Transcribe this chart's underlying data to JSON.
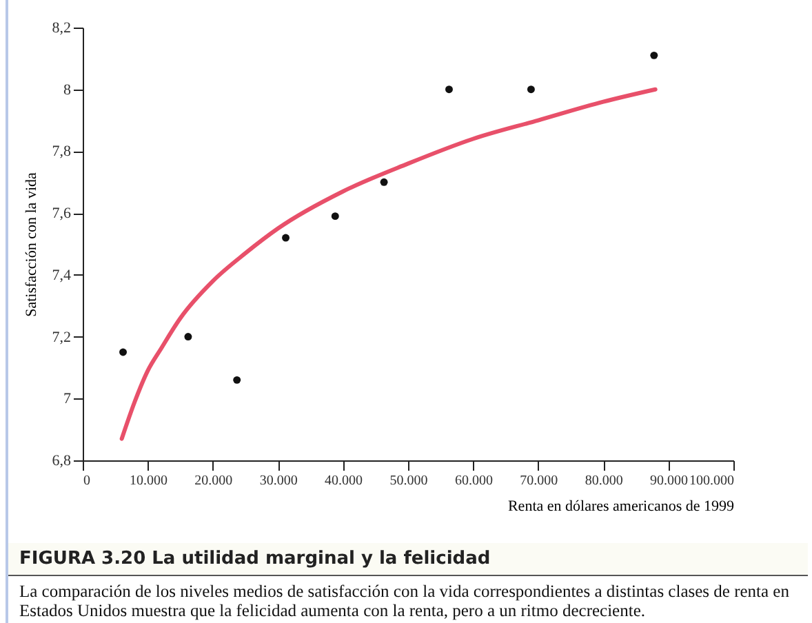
{
  "chart_data": {
    "type": "scatter",
    "title": "FIGURA 3.20 La utilidad marginal y la felicidad",
    "xlabel": "Renta en dólares americanos de 1999",
    "ylabel": "Satisfacción con la vida",
    "annotations": [
      "La comparación de los niveles medios de satisfacción con la vida correspondientes a distintas clases de renta en Estados Unidos muestra que la felicidad aumenta con la renta, pero a un ritmo decreciente."
    ],
    "series": [
      {
        "color": "#111111",
        "marker": "circle",
        "x": [
          6200,
          16200,
          23700,
          31200,
          38800,
          46300,
          56300,
          68900,
          87800
        ],
        "values": [
          7.15,
          7.2,
          7.06,
          7.52,
          7.59,
          7.7,
          8.0,
          8.0,
          8.11
        ]
      },
      {
        "type": "line",
        "marker": "none",
        "color": "#e8506a",
        "x": [
          6000,
          8000,
          10000,
          12000,
          15000,
          20000,
          25000,
          30000,
          40000,
          50000,
          60000,
          70000,
          80000,
          88000
        ],
        "values": [
          6.87,
          6.99,
          7.09,
          7.16,
          7.26,
          7.38,
          7.47,
          7.55,
          7.67,
          7.76,
          7.84,
          7.9,
          7.96,
          8.0
        ]
      }
    ],
    "xlim": [
      0,
      100000
    ],
    "xticks": [
      0,
      {
        "value": 10000,
        "label": "10.000"
      },
      {
        "value": 20000,
        "label": "20.000"
      },
      {
        "value": 30000,
        "label": "30.000"
      },
      {
        "value": 40000,
        "label": "40.000"
      },
      {
        "value": 50000,
        "label": "50.000"
      },
      {
        "value": 60000,
        "label": "60.000"
      },
      {
        "value": 70000,
        "label": "70.000"
      },
      {
        "value": 80000,
        "label": "80.000"
      },
      {
        "value": 90000,
        "label": "90.000"
      },
      {
        "value": 100000,
        "label": "100.000"
      }
    ],
    "ylim": [
      6.8,
      8.2
    ],
    "yticks": [
      {
        "value": 6.8,
        "label": "6,8"
      },
      7,
      {
        "value": 7.2,
        "label": "7,2"
      },
      {
        "value": 7.4,
        "label": "7,4"
      },
      {
        "value": 7.6,
        "label": "7,6"
      },
      {
        "value": 7.8,
        "label": "7,8"
      },
      8,
      {
        "value": 8.2,
        "label": "8,2"
      }
    ],
    "grid": false
  }
}
